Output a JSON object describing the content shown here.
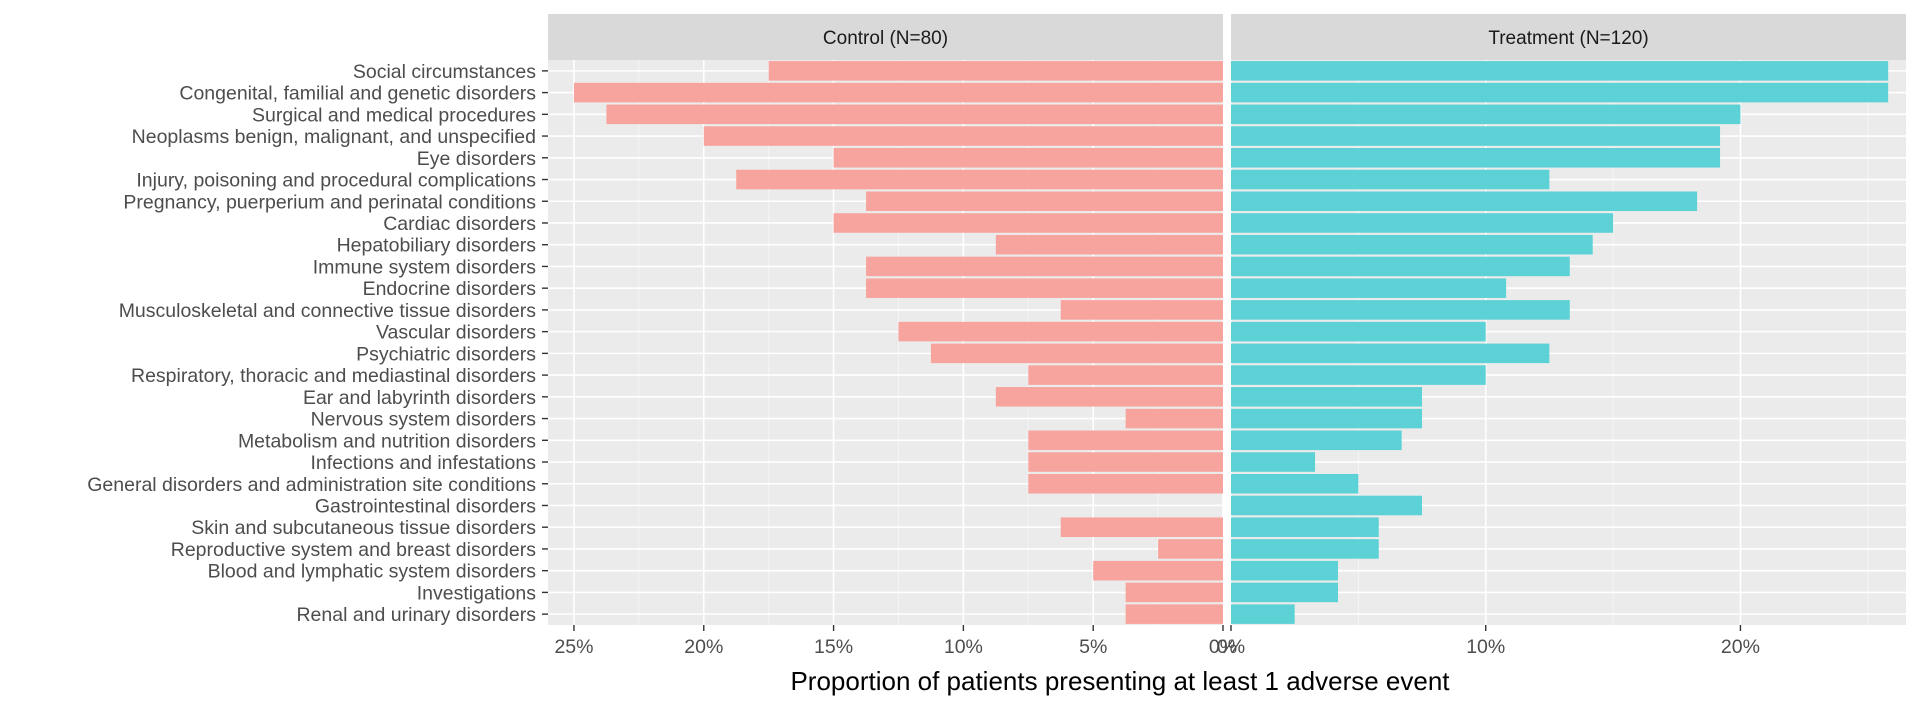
{
  "chart_data": {
    "type": "bar",
    "orientation": "horizontal",
    "xlabel": "Proportion of patients presenting at least 1 adverse event",
    "ylabel": "",
    "grid": true,
    "legend": "none",
    "categories": [
      "Social circumstances",
      "Congenital, familial and genetic disorders",
      "Surgical and medical procedures",
      "Neoplasms benign, malignant, and unspecified",
      "Eye disorders",
      "Injury, poisoning and procedural complications",
      "Pregnancy, puerperium and perinatal conditions",
      "Cardiac disorders",
      "Hepatobiliary disorders",
      "Immune system disorders",
      "Endocrine disorders",
      "Musculoskeletal and connective tissue disorders",
      "Vascular disorders",
      "Psychiatric disorders",
      "Respiratory, thoracic and mediastinal disorders",
      "Ear and labyrinth disorders",
      "Nervous system disorders",
      "Metabolism and nutrition disorders",
      "Infections and infestations",
      "General disorders and administration site conditions",
      "Gastrointestinal disorders",
      "Skin and subcutaneous tissue disorders",
      "Reproductive system and breast disorders",
      "Blood and lymphatic system disorders",
      "Investigations",
      "Renal and urinary disorders"
    ],
    "panels": [
      {
        "name": "Control (N=80)",
        "color": "#F8A49E",
        "direction": "reversed",
        "xlim": [
          0,
          26
        ],
        "ticks": [
          0,
          5,
          10,
          15,
          20,
          25
        ],
        "tick_labels": [
          "0%",
          "5%",
          "10%",
          "15%",
          "20%",
          "25%"
        ],
        "values": [
          17.5,
          25,
          23.75,
          20,
          15,
          18.75,
          13.75,
          15,
          8.75,
          13.75,
          13.75,
          6.25,
          12.5,
          11.25,
          7.5,
          8.75,
          3.75,
          7.5,
          7.5,
          7.5,
          0,
          6.25,
          2.5,
          5,
          3.75,
          3.75
        ]
      },
      {
        "name": "Treatment (N=120)",
        "color": "#5DD2D6",
        "direction": "normal",
        "xlim": [
          0,
          26.5
        ],
        "ticks": [
          0,
          10,
          20
        ],
        "tick_labels": [
          "0%",
          "10%",
          "20%"
        ],
        "values": [
          25.8,
          25.8,
          20,
          19.2,
          19.2,
          12.5,
          18.3,
          15,
          14.2,
          13.3,
          10.8,
          13.3,
          10,
          12.5,
          10,
          7.5,
          7.5,
          6.7,
          3.3,
          5,
          7.5,
          5.8,
          5.8,
          4.2,
          4.2,
          2.5
        ]
      }
    ]
  }
}
